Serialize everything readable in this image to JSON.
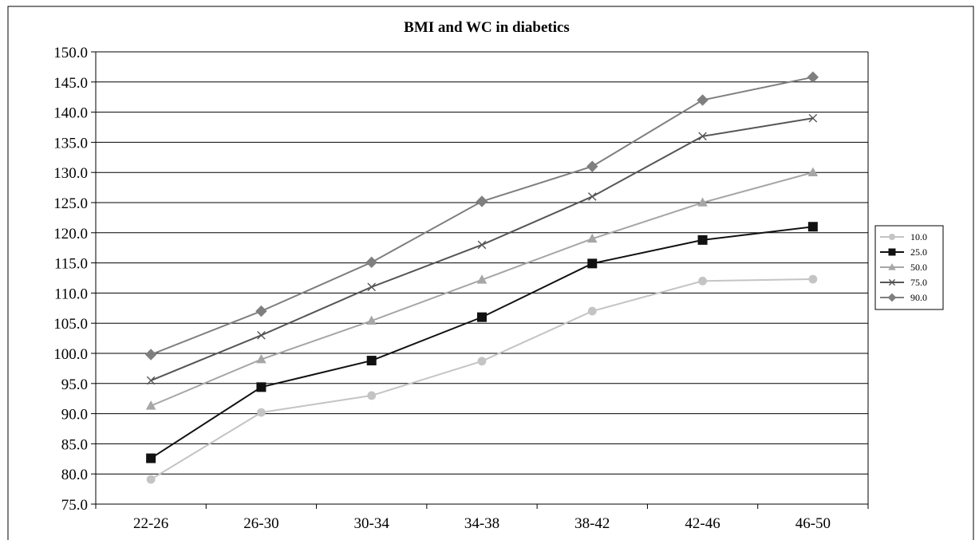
{
  "chart_data": {
    "type": "line",
    "title": "BMI and WC in diabetics",
    "xlabel": "",
    "ylabel": "",
    "categories": [
      "22-26",
      "26-30",
      "30-34",
      "34-38",
      "38-42",
      "42-46",
      "46-50"
    ],
    "ylim": [
      75,
      150
    ],
    "ytick_step": 5,
    "ytick_labels": [
      "75.0",
      "80.0",
      "85.0",
      "90.0",
      "95.0",
      "100.0",
      "105.0",
      "110.0",
      "115.0",
      "120.0",
      "125.0",
      "130.0",
      "135.0",
      "140.0",
      "145.0",
      "150.0"
    ],
    "grid": true,
    "legend_position": "right",
    "series": [
      {
        "name": "10.0",
        "values": [
          79.1,
          90.2,
          93.0,
          98.7,
          107.0,
          112.0,
          112.3
        ],
        "color": "#c4c4c4",
        "marker": "circle"
      },
      {
        "name": "25.0",
        "values": [
          82.6,
          94.4,
          98.8,
          106.0,
          114.9,
          118.8,
          121.0
        ],
        "color": "#111111",
        "marker": "square"
      },
      {
        "name": "50.0",
        "values": [
          91.3,
          99.0,
          105.4,
          112.2,
          119.0,
          125.0,
          130.0
        ],
        "color": "#a6a6a6",
        "marker": "triangle"
      },
      {
        "name": "75.0",
        "values": [
          95.5,
          103.0,
          111.0,
          118.0,
          126.0,
          136.0,
          139.0
        ],
        "color": "#555555",
        "marker": "x"
      },
      {
        "name": "90.0",
        "values": [
          99.8,
          107.0,
          115.1,
          125.2,
          131.0,
          142.0,
          145.8
        ],
        "color": "#7f7f7f",
        "marker": "diamond"
      }
    ]
  }
}
